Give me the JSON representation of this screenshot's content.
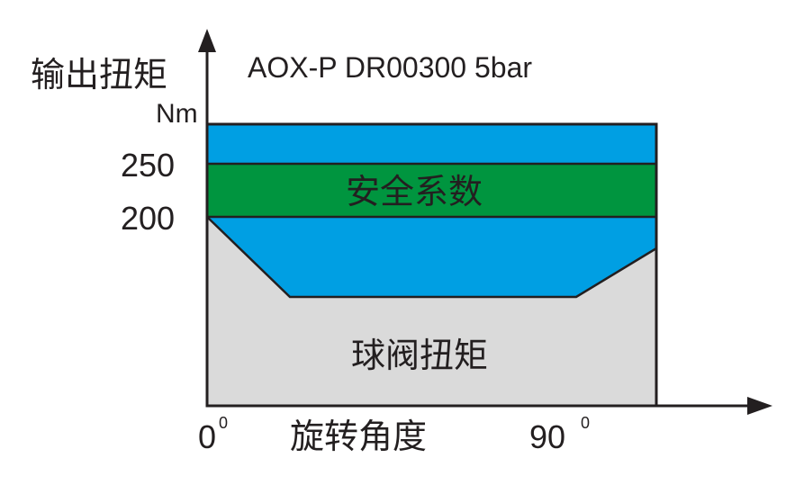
{
  "title": "AOX-P DR00300 5bar",
  "y_axis": {
    "label": "输出扭矩",
    "unit": "Nm",
    "ticks": [
      "250",
      "200"
    ]
  },
  "x_axis": {
    "label": "旋转角度",
    "ticks": [
      "0",
      "90"
    ],
    "tick_superscript": "0"
  },
  "regions": {
    "safety_factor": {
      "label": "安全系数",
      "color": "#00953f"
    },
    "actuator_torque": {
      "color": "#009fe3"
    },
    "valve_torque": {
      "label": "球阀扭矩",
      "color": "#dadada"
    }
  }
}
